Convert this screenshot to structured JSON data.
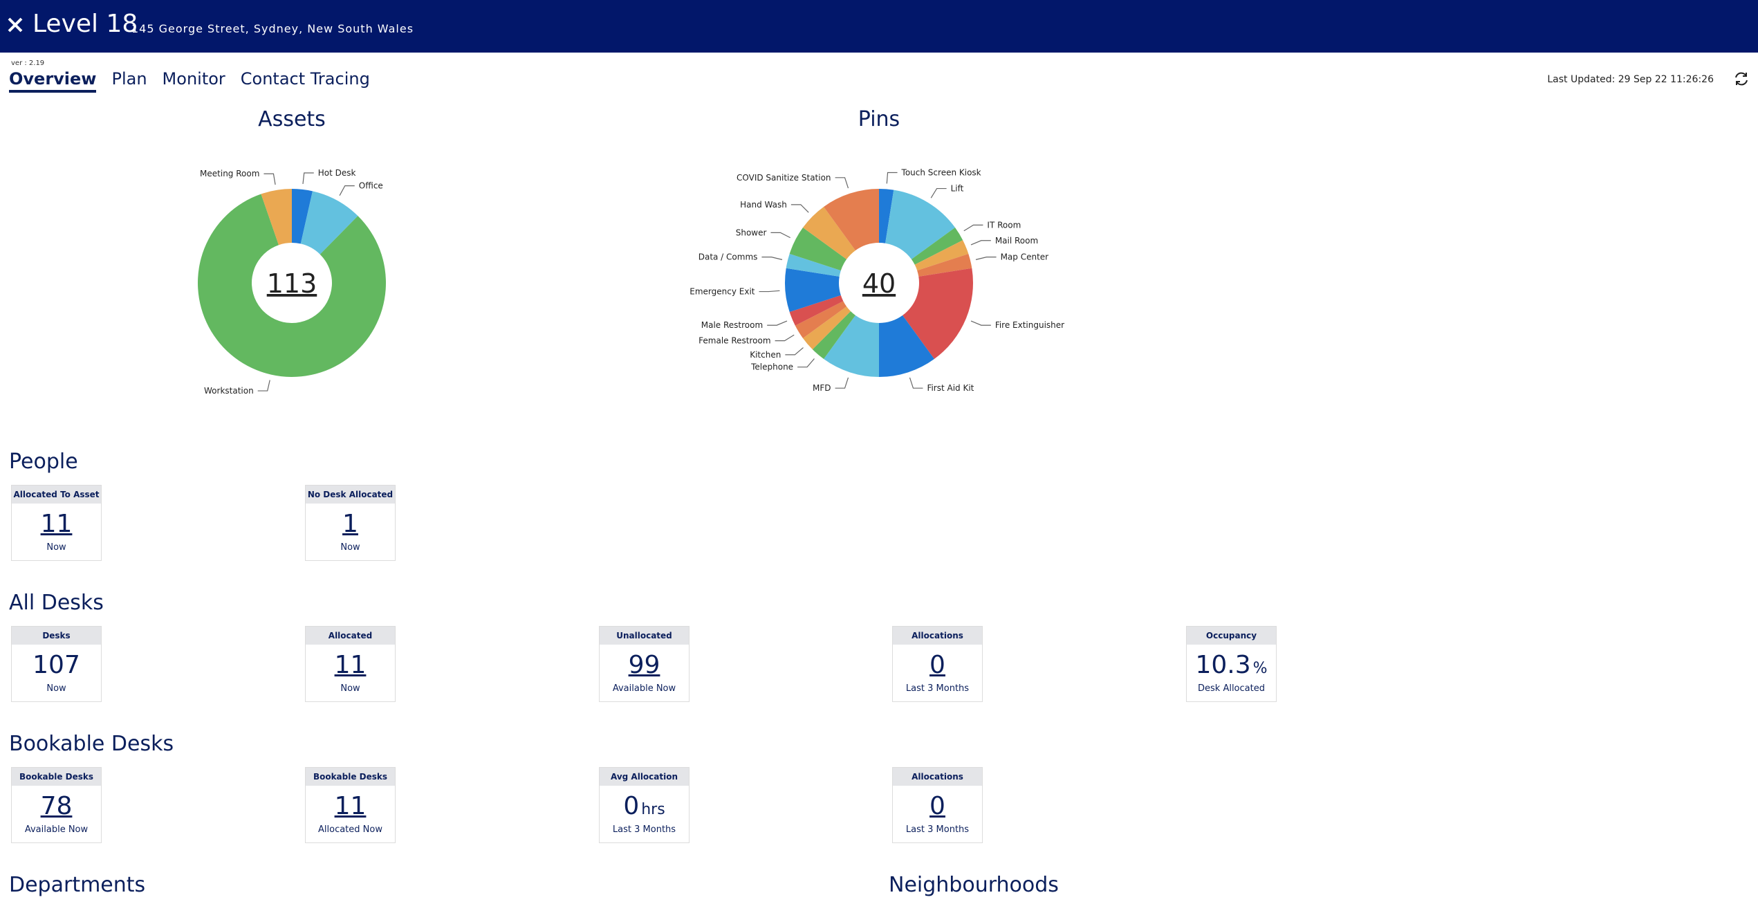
{
  "header": {
    "title": "Level 18",
    "address": "145 George Street, Sydney, New South Wales"
  },
  "version": "ver : 2.19",
  "nav": {
    "tabs": [
      "Overview",
      "Plan",
      "Monitor",
      "Contact Tracing"
    ],
    "active": 0
  },
  "last_updated": "Last Updated: 29 Sep 22 11:26:26",
  "chart_data": [
    {
      "type": "pie",
      "title": "Assets",
      "total": 113,
      "categories": [
        "Hot Desk",
        "Office",
        "Workstation",
        "Meeting Room"
      ],
      "values": [
        4,
        10,
        93,
        6
      ],
      "colors": [
        "#1f7bd8",
        "#63c1df",
        "#63b860",
        "#eaa852"
      ]
    },
    {
      "type": "pie",
      "title": "Pins",
      "total": 40,
      "categories": [
        "Touch Screen Kiosk",
        "Lift",
        "IT Room",
        "Mail Room",
        "Map Center",
        "Fire Extinguisher",
        "First Aid Kit",
        "MFD",
        "Telephone",
        "Kitchen",
        "Female Restroom",
        "Male Restroom",
        "Emergency Exit",
        "Data / Comms",
        "Shower",
        "Hand Wash",
        "COVID Sanitize Station"
      ],
      "values": [
        1,
        5,
        1,
        1,
        1,
        7,
        4,
        4,
        1,
        1,
        1,
        1,
        3,
        1,
        2,
        2,
        4
      ],
      "colors": [
        "#1f7bd8",
        "#63c1df",
        "#63b860",
        "#eaa852",
        "#e47e4f",
        "#d95050",
        "#1f7bd8",
        "#63c1df",
        "#63b860",
        "#eaa852",
        "#e47e4f",
        "#d95050",
        "#1f7bd8",
        "#63c1df",
        "#63b860",
        "#eaa852",
        "#e47e4f"
      ]
    }
  ],
  "sections": [
    {
      "title": "People",
      "cards": [
        {
          "title": "Allocated To Asset",
          "value": 11,
          "caption": "Now",
          "link": true
        },
        {
          "title": "No Desk Allocated",
          "value": 1,
          "caption": "Now",
          "link": true
        }
      ]
    },
    {
      "title": "All Desks",
      "cards": [
        {
          "title": "Desks",
          "value": 107,
          "caption": "Now",
          "link": false
        },
        {
          "title": "Allocated",
          "value": 11,
          "caption": "Now",
          "link": true
        },
        {
          "title": "Unallocated",
          "value": 99,
          "caption": "Available Now",
          "link": true
        },
        {
          "title": "Allocations",
          "value": 0,
          "caption": "Last 3 Months",
          "link": true
        },
        {
          "title": "Occupancy",
          "value": 10.3,
          "unit": "%",
          "caption": "Desk Allocated",
          "link": false
        }
      ]
    },
    {
      "title": "Bookable Desks",
      "cards": [
        {
          "title": "Bookable Desks",
          "value": 78,
          "caption": "Available Now",
          "link": true
        },
        {
          "title": "Bookable Desks",
          "value": 11,
          "caption": "Allocated Now",
          "link": true
        },
        {
          "title": "Avg Allocation",
          "value": 0,
          "unit": "hrs",
          "caption": "Last 3 Months",
          "link": false
        },
        {
          "title": "Allocations",
          "value": 0,
          "caption": "Last 3 Months",
          "link": true
        }
      ]
    }
  ],
  "bottom_headings": [
    "Departments",
    "Neighbourhoods"
  ]
}
